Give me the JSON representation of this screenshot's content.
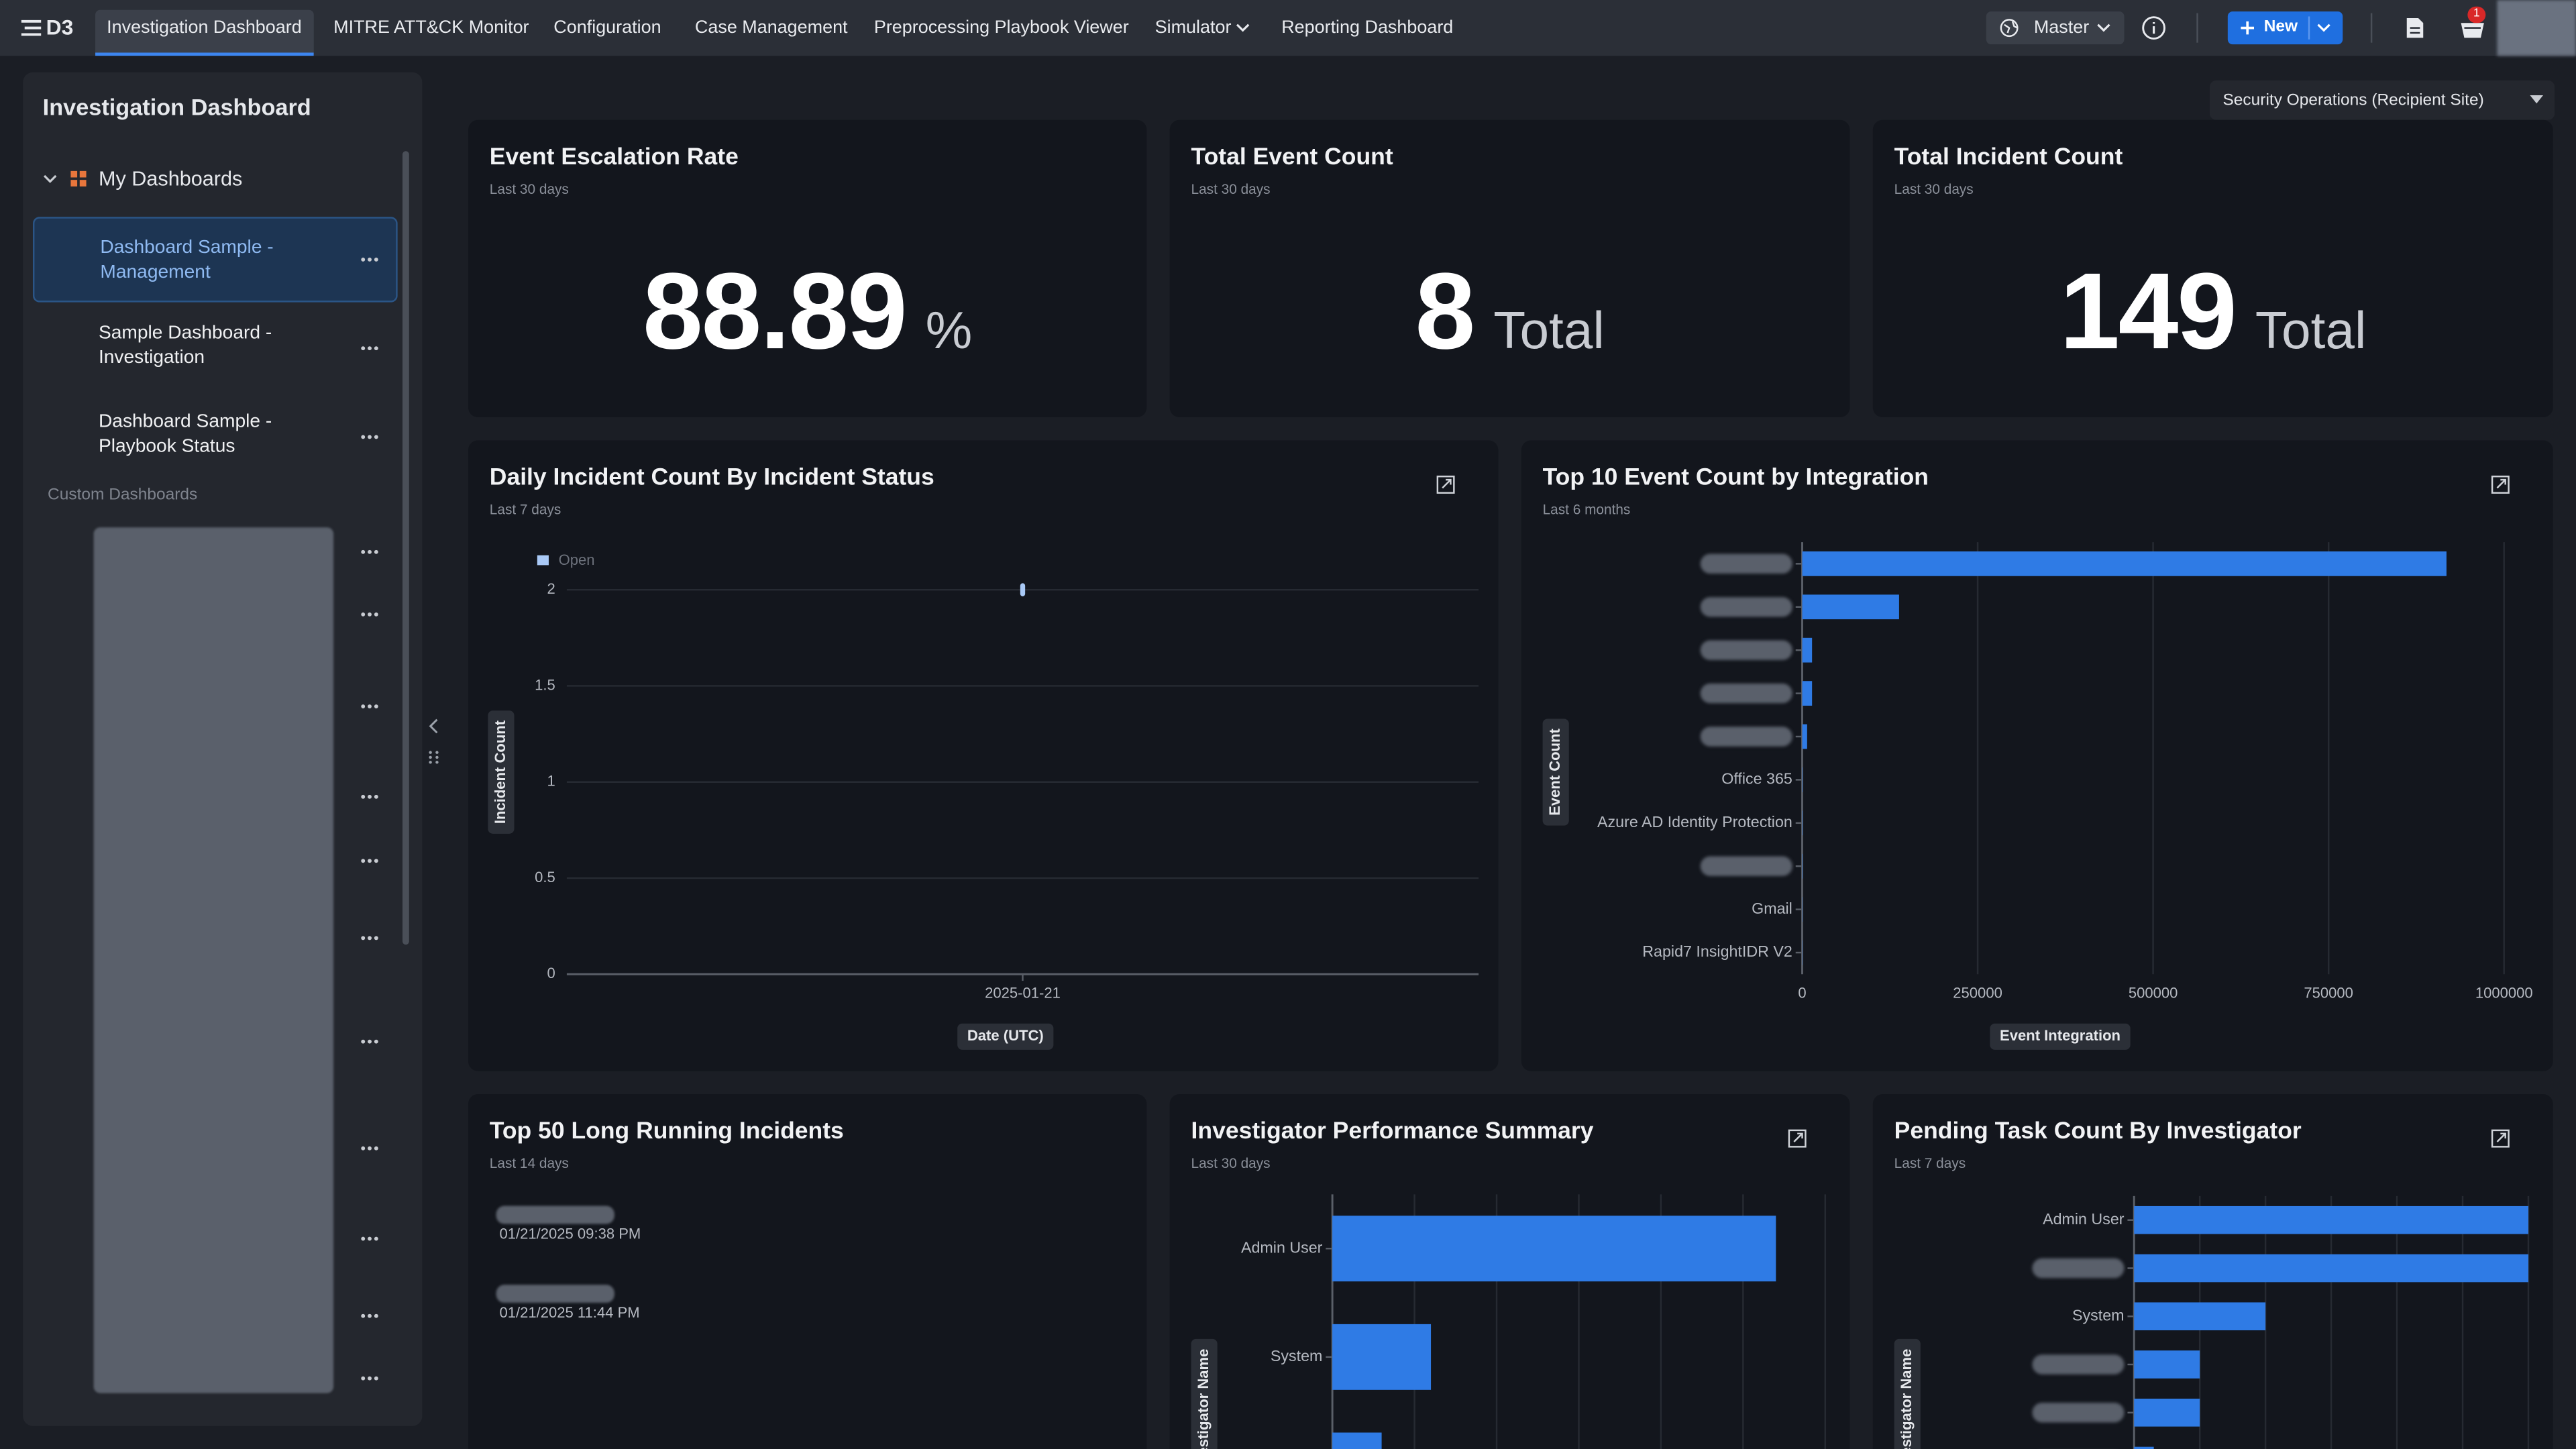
{
  "nav": {
    "logo": "D3",
    "tabs": [
      "Investigation Dashboard",
      "MITRE ATT&CK Monitor",
      "Configuration",
      "Case Management",
      "Preprocessing Playbook Viewer",
      "Simulator",
      "Reporting Dashboard"
    ],
    "site": "Master",
    "new_button": "New",
    "notification_count": 1
  },
  "sidebar": {
    "title": "Investigation Dashboard",
    "section": "My Dashboards",
    "dashboards": [
      "Dashboard Sample - Management",
      "Sample Dashboard - Investigation",
      "Dashboard Sample - Playbook Status"
    ],
    "custom_section": "Custom Dashboards"
  },
  "site_filter": "Security Operations (Recipient Site)",
  "kpis": [
    {
      "title": "Event Escalation Rate",
      "period": "Last 30 days",
      "value": 88.89,
      "unit": "%"
    },
    {
      "title": "Total Event Count",
      "period": "Last 30 days",
      "value": 8,
      "unit": "Total"
    },
    {
      "title": "Total Incident Count",
      "period": "Last 30 days",
      "value": 149,
      "unit": "Total"
    }
  ],
  "daily_incidents": {
    "type": "line",
    "title": "Daily Incident Count By Incident Status",
    "subtitle": "Last 7 days",
    "x_label": "Date (UTC)",
    "y_label": "Incident Count",
    "categories": [
      "2025-01-21"
    ],
    "series": [
      {
        "name": "Open",
        "color": "#a9c9f6",
        "values": [
          2
        ]
      }
    ],
    "ylim": [
      0,
      2
    ],
    "yticks": [
      0,
      0.5,
      1,
      1.5,
      2
    ],
    "grid": true
  },
  "top_integrations": {
    "type": "hbar",
    "title": "Top 10 Event Count by Integration",
    "subtitle": "Last 6 months",
    "x_label": "Event Integration",
    "y_label": "Event Count",
    "categories": [
      null,
      null,
      null,
      null,
      null,
      "Office 365",
      "Azure AD Identity Protection",
      null,
      "Gmail",
      "Rapid7 InsightIDR V2"
    ],
    "values": [
      918000,
      138000,
      14000,
      14000,
      7000,
      500,
      500,
      500,
      300,
      300
    ],
    "color": "#2f7be5",
    "xlim": [
      0,
      1037000
    ],
    "xticks": [
      0,
      250000,
      500000,
      750000,
      1000000
    ],
    "grid": true
  },
  "long_running": {
    "title": "Top 50 Long Running Incidents",
    "subtitle": "Last 14 days",
    "incidents": [
      "01/21/2025 09:38 PM",
      "01/21/2025 11:44 PM"
    ]
  },
  "investigator_performance": {
    "type": "hbar",
    "title": "Investigator Performance Summary",
    "subtitle": "Last 30 days",
    "y_label": "Investigator Name",
    "categories": [
      "Admin User",
      "System",
      null
    ],
    "values": [
      5.4,
      1.2,
      0.6
    ],
    "color": "#2f7be5",
    "xlim": [
      0,
      6
    ]
  },
  "pending_tasks": {
    "type": "hbar",
    "title": "Pending Task Count By Investigator",
    "subtitle": "Last 7 days",
    "y_label": "Investigator Name",
    "categories": [
      "Admin User",
      null,
      "System",
      null,
      null,
      null
    ],
    "values": [
      6,
      6,
      2,
      1,
      1,
      0.3
    ],
    "color": "#2f7be5",
    "xlim": [
      0,
      6
    ]
  }
}
